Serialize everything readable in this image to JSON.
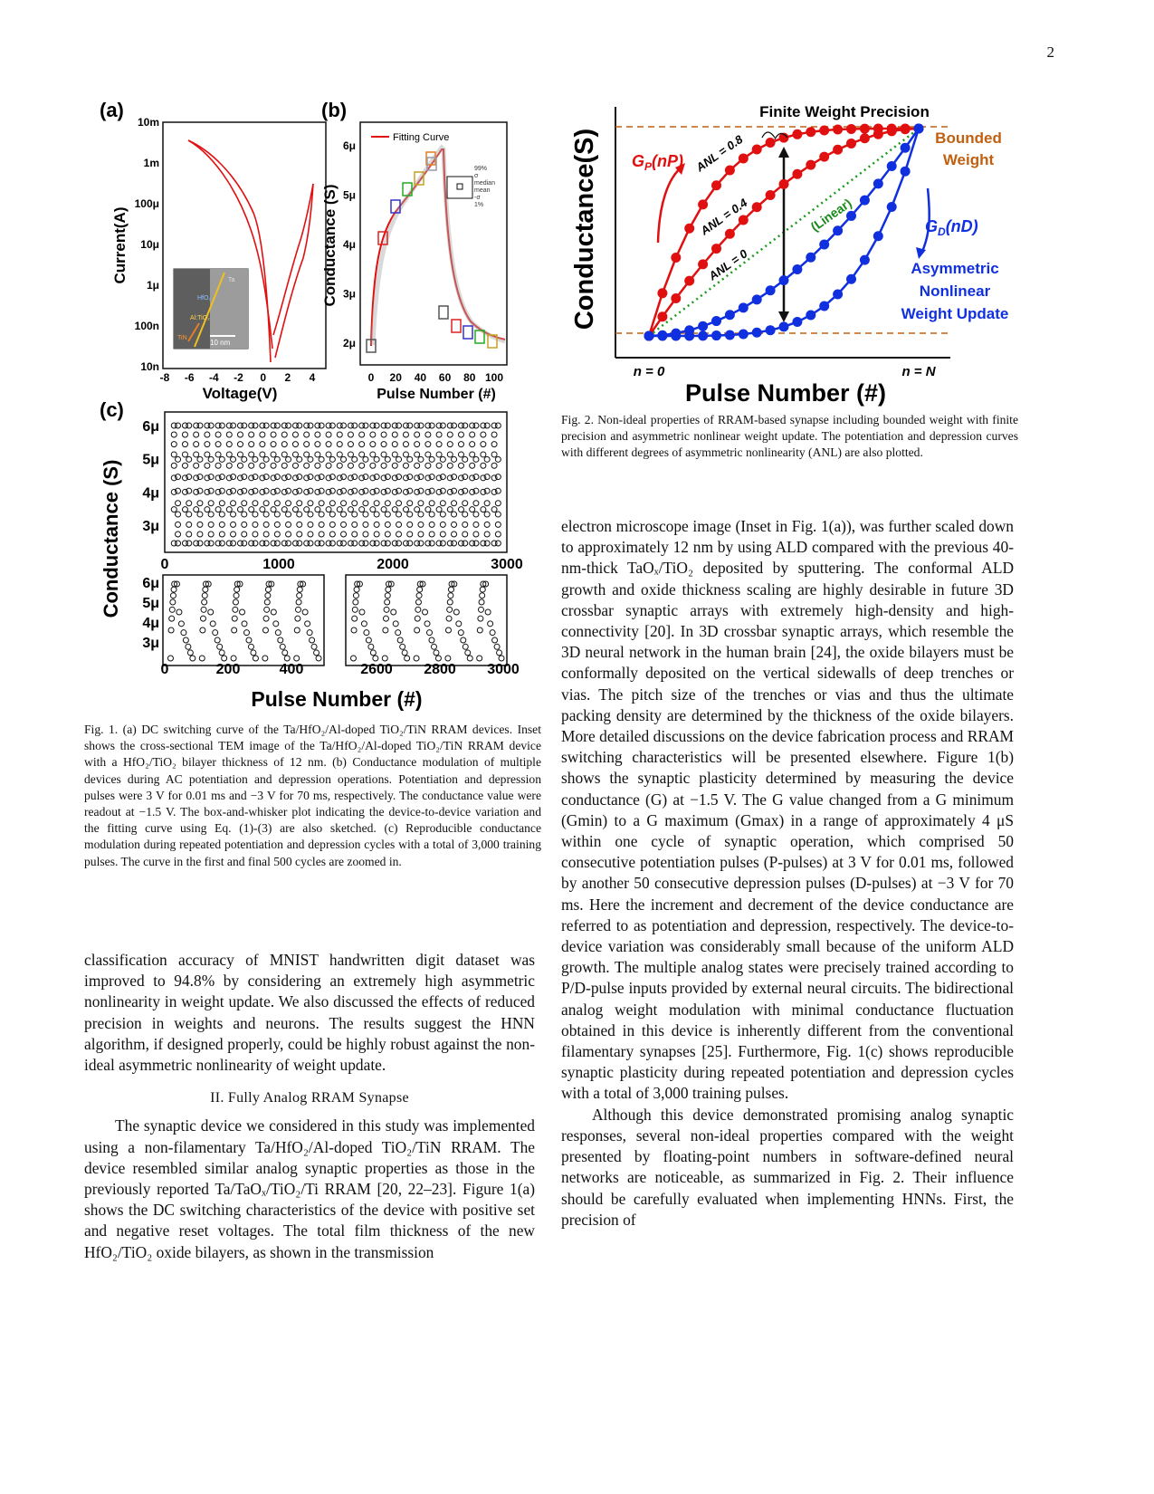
{
  "page_number": "2",
  "fig1": {
    "a": {
      "panel": "(a)",
      "xlabel": "Voltage(V)",
      "ylabel": "Current(A)",
      "xticks": [
        "-8",
        "-6",
        "-4",
        "-2",
        "0",
        "2",
        "4"
      ],
      "yticks": [
        "10m",
        "1m",
        "100μ",
        "10μ",
        "1μ",
        "100n",
        "10n"
      ],
      "inset_scale": "10 nm",
      "inset_labels": [
        "Ta",
        "HfO₂",
        "Al:TiO₂",
        "TiN"
      ]
    },
    "b": {
      "panel": "(b)",
      "xlabel": "Pulse Number (#)",
      "ylabel": "Conductance (S)",
      "xticks": [
        "0",
        "20",
        "40",
        "60",
        "80",
        "100"
      ],
      "yticks": [
        "6μ",
        "5μ",
        "4μ",
        "3μ",
        "2μ"
      ],
      "legend_line": "Fitting Curve",
      "box_legend": [
        "99%",
        "σ",
        "median",
        "mean",
        "-σ",
        "1%"
      ]
    },
    "c": {
      "panel": "(c)",
      "ylabel": "Conductance (S)",
      "xlabel": "Pulse Number (#)",
      "top_xticks": [
        "0",
        "1000",
        "2000",
        "3000"
      ],
      "top_yticks": [
        "6μ",
        "5μ",
        "4μ",
        "3μ"
      ],
      "bl_xticks": [
        "0",
        "200",
        "400"
      ],
      "br_xticks": [
        "2600",
        "2800",
        "3000"
      ],
      "bot_yticks": [
        "6μ",
        "5μ",
        "4μ",
        "3μ"
      ]
    },
    "caption": "Fig. 1. (a) DC switching curve of the Ta/HfO₂/Al-doped TiO₂/TiN RRAM devices. Inset shows the cross-sectional TEM image of the Ta/HfO₂/Al-doped TiO₂/TiN RRAM device with a HfO₂/TiO₂ bilayer thickness of 12 nm. (b) Conductance modulation of multiple devices during AC potentiation and depression operations. Potentiation and depression pulses were 3 V for 0.01 ms and −3 V for 70 ms, respectively. The conductance value were readout at −1.5 V. The box-and-whisker plot indicating the device-to-device variation and the fitting curve using Eq. (1)-(3) are also sketched. (c) Reproducible conductance modulation during repeated potentiation and depression cycles with a total of 3,000 training pulses. The curve in the first and final 500 cycles are zoomed in."
  },
  "fig2": {
    "title": "Finite Weight Precision",
    "ylabel": "Conductance(S)",
    "xlabel": "Pulse Number (#)",
    "x0": "n = 0",
    "xN": "n = N",
    "gp": "G",
    "gp_sub": "P",
    "gp_arg": "(nP)",
    "gd": "G",
    "gd_sub": "D",
    "gd_arg": "(nD)",
    "anl08": "ANL = 0.8",
    "anl04": "ANL = 0.4",
    "anl0": "ANL = 0",
    "linear": "(Linear)",
    "bounded1": "Bounded",
    "bounded2": "Weight",
    "asym1": "Asymmetric",
    "asym2": "Nonlinear",
    "asym3": "Weight Update",
    "caption": "Fig. 2. Non-ideal properties of RRAM-based synapse including bounded weight with finite precision and asymmetric nonlinear weight update. The potentiation and depression curves with different degrees of asymmetric nonlinearity (ANL) are also plotted."
  },
  "left_text": {
    "p1": "classification accuracy of MNIST handwritten digit dataset was improved to 94.8% by considering an extremely high asymmetric nonlinearity in weight update. We also discussed the effects of reduced precision in weights and neurons. The results suggest the HNN algorithm, if designed properly, could be highly robust against the non-ideal asymmetric nonlinearity of weight update.",
    "section": "II.   Fully Analog RRAM Synapse",
    "p2": "The synaptic device we considered in this study was implemented using a non-filamentary Ta/HfO₂/Al-doped TiO₂/TiN RRAM. The device resembled similar analog synaptic properties as those in the previously reported Ta/TaOₓ/TiO₂/Ti RRAM [20, 22–23]. Figure 1(a) shows the DC switching characteristics of the device with positive set and negative reset voltages. The total film thickness of the new HfO₂/TiO₂ oxide bilayers, as shown in the transmission"
  },
  "right_text": {
    "p1": "electron microscope image (Inset in Fig. 1(a)), was further scaled down to approximately 12 nm by using ALD compared with the previous 40-nm-thick TaOₓ/TiO₂ deposited by sputtering. The conformal ALD growth and oxide thickness scaling are highly desirable in future 3D crossbar synaptic arrays with extremely high-density and high-connectivity [20]. In 3D crossbar synaptic arrays, which resemble the 3D neural network in the human brain [24], the oxide bilayers must be conformally deposited on the vertical sidewalls of deep trenches or vias. The pitch size of the trenches or vias and thus the ultimate packing density are determined by the thickness of the oxide bilayers. More detailed discussions on the device fabrication process and RRAM switching characteristics will be presented elsewhere. Figure 1(b) shows the synaptic plasticity determined by measuring the device conductance (G) at −1.5 V. The G value changed from a G minimum (Gmin) to a G maximum (Gmax) in a range of approximately 4 μS within one cycle of synaptic operation, which comprised 50 consecutive potentiation pulses (P-pulses) at 3 V for 0.01 ms, followed by another 50 consecutive depression pulses (D-pulses) at −3 V for 70 ms. Here the increment and decrement of the device conductance are referred to as potentiation and depression, respectively. The device-to-device variation was considerably small because of the uniform ALD growth. The multiple analog states were precisely trained according to P/D-pulse inputs provided by external neural circuits. The bidirectional analog weight modulation with minimal conductance fluctuation obtained in this device is inherently different from the conventional filamentary synapses [25]. Furthermore, Fig. 1(c) shows reproducible synaptic plasticity during repeated potentiation and depression cycles with a total of 3,000 training pulses.",
    "p2": "Although this device demonstrated promising analog synaptic responses, several non-ideal properties compared with the weight presented by floating-point numbers in software-defined neural networks are noticeable, as summarized in Fig. 2. Their influence should be carefully evaluated when implementing HNNs. First, the precision of"
  }
}
